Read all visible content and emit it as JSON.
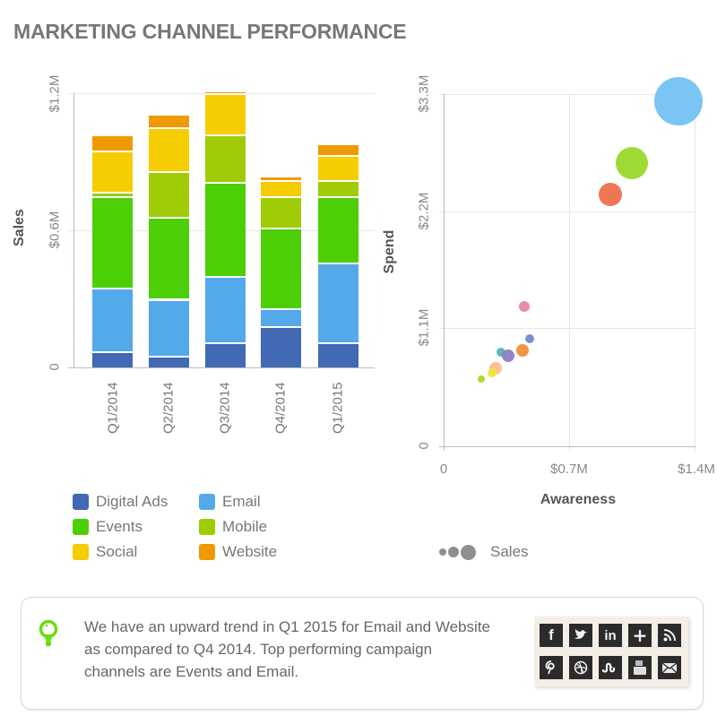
{
  "page": {
    "title": "MARKETING CHANNEL PERFORMANCE"
  },
  "colors": {
    "Digital Ads": "#4169b4",
    "Email": "#54a9e8",
    "Events": "#4ccf07",
    "Mobile": "#9fcc06",
    "Social": "#f6cc03",
    "Website": "#ef9a02"
  },
  "chart_data": [
    {
      "type": "bar",
      "stacked": true,
      "title": "",
      "xlabel": "",
      "ylabel": "Sales",
      "categories": [
        "Q1/2014",
        "Q2/2014",
        "Q3/2014",
        "Q4/2014",
        "Q1/2015"
      ],
      "yticks": [
        "0",
        "$0.6M",
        "$1.2M"
      ],
      "ylim": [
        0,
        1.2
      ],
      "grid": true,
      "legend_position": "bottom",
      "series": [
        {
          "name": "Digital Ads",
          "values": [
            0.07,
            0.05,
            0.11,
            0.18,
            0.11
          ]
        },
        {
          "name": "Email",
          "values": [
            0.28,
            0.25,
            0.29,
            0.08,
            0.35
          ]
        },
        {
          "name": "Events",
          "values": [
            0.4,
            0.36,
            0.41,
            0.35,
            0.29
          ]
        },
        {
          "name": "Mobile",
          "values": [
            0.02,
            0.2,
            0.21,
            0.14,
            0.07
          ]
        },
        {
          "name": "Social",
          "values": [
            0.18,
            0.19,
            0.18,
            0.07,
            0.11
          ]
        },
        {
          "name": "Website",
          "values": [
            0.07,
            0.06,
            0.005,
            0.01,
            0.05
          ]
        }
      ]
    },
    {
      "type": "scatter",
      "subtype": "bubble",
      "title": "",
      "xlabel": "Awareness",
      "ylabel": "Spend",
      "xticks": [
        "0",
        "$0.7M",
        "$1.4M"
      ],
      "yticks": [
        "0",
        "$1.1M",
        "$2.2M",
        "$3.3M"
      ],
      "xlim": [
        0,
        1.4
      ],
      "ylim": [
        0,
        3.3
      ],
      "grid": true,
      "size_legend": "Sales",
      "points": [
        {
          "x": 1.31,
          "y": 3.23,
          "r": 27,
          "color": "#6fc0f2"
        },
        {
          "x": 1.05,
          "y": 2.65,
          "r": 18,
          "color": "#96d824"
        },
        {
          "x": 0.93,
          "y": 2.36,
          "r": 13,
          "color": "#ec6a45"
        },
        {
          "x": 0.45,
          "y": 1.31,
          "r": 6,
          "color": "#e483a8"
        },
        {
          "x": 0.48,
          "y": 1.01,
          "r": 5,
          "color": "#6f86cf"
        },
        {
          "x": 0.44,
          "y": 0.9,
          "r": 7,
          "color": "#ef8b35"
        },
        {
          "x": 0.32,
          "y": 0.88,
          "r": 5,
          "color": "#4fb3b0"
        },
        {
          "x": 0.36,
          "y": 0.85,
          "r": 7,
          "color": "#8a7bc8"
        },
        {
          "x": 0.29,
          "y": 0.73,
          "r": 7,
          "color": "#f5c08a"
        },
        {
          "x": 0.27,
          "y": 0.69,
          "r": 5,
          "color": "#f2e533"
        },
        {
          "x": 0.21,
          "y": 0.63,
          "r": 4,
          "color": "#a6d61a"
        }
      ]
    }
  ],
  "bar_chart": {
    "ylabel": "Sales",
    "yticks": {
      "t0": "0",
      "t1": "$0.6M",
      "t2": "$1.2M"
    },
    "categories": {
      "c0": "Q1/2014",
      "c1": "Q2/2014",
      "c2": "Q3/2014",
      "c3": "Q4/2014",
      "c4": "Q1/2015"
    }
  },
  "scatter_chart": {
    "xlabel": "Awareness",
    "ylabel": "Spend",
    "xticks": {
      "t0": "0",
      "t1": "$0.7M",
      "t2": "$1.4M"
    },
    "yticks": {
      "t0": "0",
      "t1": "$1.1M",
      "t2": "$2.2M",
      "t3": "$3.3M"
    },
    "size_legend": "Sales"
  },
  "legend": {
    "items": [
      {
        "label": "Digital Ads"
      },
      {
        "label": "Email"
      },
      {
        "label": "Events"
      },
      {
        "label": "Mobile"
      },
      {
        "label": "Social"
      },
      {
        "label": "Website"
      }
    ]
  },
  "insight": {
    "icon": "lightbulb-icon",
    "text": "We have an upward trend in Q1 2015 for Email and Website as compared to Q4 2014. Top performing campaign channels are Events and Email."
  },
  "social": {
    "icons": [
      {
        "name": "facebook-icon",
        "glyph": "f"
      },
      {
        "name": "twitter-icon",
        "glyph": "🐦"
      },
      {
        "name": "linkedin-icon",
        "glyph": "in"
      },
      {
        "name": "plus-icon",
        "glyph": "+"
      },
      {
        "name": "rss-icon",
        "glyph": "◝"
      },
      {
        "name": "pinterest-icon",
        "glyph": "P"
      },
      {
        "name": "dribbble-icon",
        "glyph": "⊛"
      },
      {
        "name": "stumbleupon-icon",
        "glyph": "ᔑ"
      },
      {
        "name": "youtube-icon",
        "glyph": "▣"
      },
      {
        "name": "email-icon",
        "glyph": "✉"
      }
    ]
  }
}
